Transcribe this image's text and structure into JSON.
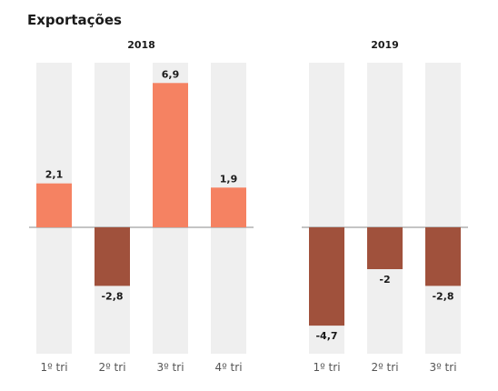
{
  "chart_data": {
    "type": "bar",
    "title": "Exportações",
    "xlabel": "",
    "ylabel": "",
    "ylim": [
      -5.8,
      6.9
    ],
    "grid": false,
    "colors": {
      "positive": "#f58262",
      "negative": "#a0513c",
      "background_band": "#efefef",
      "zero_line": "#888888"
    },
    "panels": [
      {
        "title": "2018",
        "categories": [
          "1º tri",
          "2º tri",
          "3º tri",
          "4º tri"
        ],
        "values": [
          2.1,
          -2.8,
          6.9,
          1.9
        ],
        "labels": [
          "2,1",
          "-2,8",
          "6,9",
          "1,9"
        ]
      },
      {
        "title": "2019",
        "categories": [
          "1º tri",
          "2º tri",
          "3º tri"
        ],
        "values": [
          -4.7,
          -2,
          -2.8
        ],
        "labels": [
          "-4,7",
          "-2",
          "-2,8"
        ]
      }
    ]
  }
}
